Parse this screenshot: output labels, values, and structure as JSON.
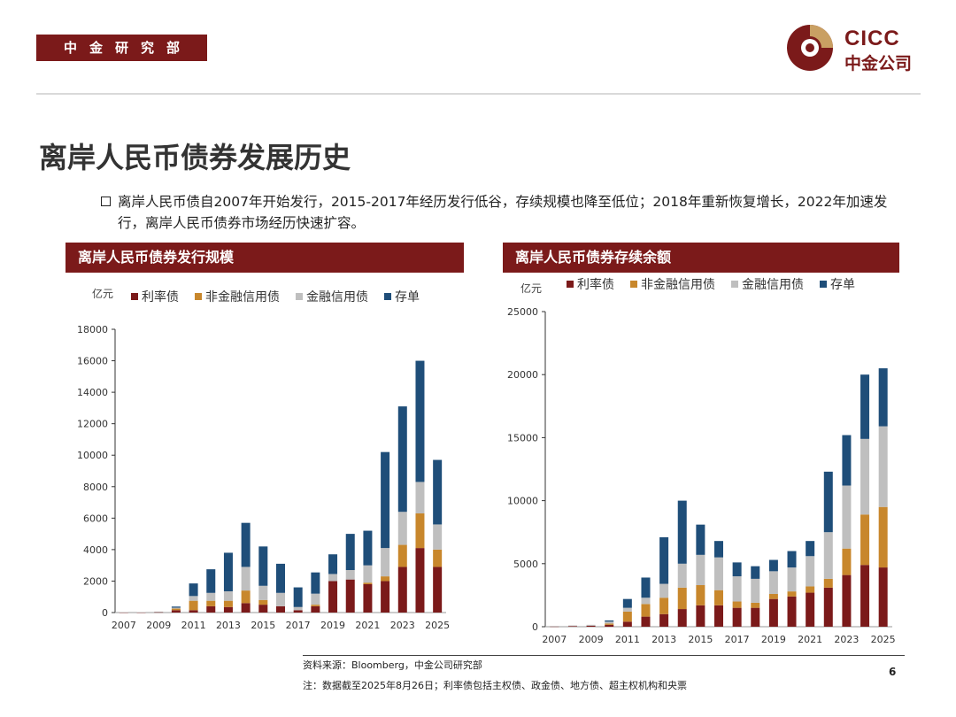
{
  "header": {
    "department": "中金研究部",
    "logo_en": "CICC",
    "logo_cn": "中金公司"
  },
  "title": "离岸人民币债券发展历史",
  "bullet": "离岸人民币债自2007年开始发行，2015-2017年经历发行低谷，存续规模也降至低位；2018年重新恢复增长，2022年加速发行，离岸人民币债券市场经历快速扩容。",
  "colors": {
    "brand": "#7b1a1a",
    "rate_bond": "#7b1a1a",
    "non_fin_credit": "#c8872c",
    "fin_credit": "#bfbfbf",
    "cd": "#1f4e79"
  },
  "chart_data": [
    {
      "type": "bar",
      "stacked": true,
      "title": "离岸人民币债券发行规模",
      "ylabel": "亿元",
      "ylim": [
        0,
        18000
      ],
      "yticks": [
        0,
        2000,
        4000,
        6000,
        8000,
        10000,
        12000,
        14000,
        16000,
        18000
      ],
      "categories": [
        "2007",
        "2008",
        "2009",
        "2010",
        "2011",
        "2012",
        "2013",
        "2014",
        "2015",
        "2016",
        "2017",
        "2018",
        "2019",
        "2020",
        "2021",
        "2022",
        "2023",
        "2024",
        "2025"
      ],
      "xtick_labels": [
        "2007",
        "2009",
        "2011",
        "2013",
        "2015",
        "2017",
        "2019",
        "2021",
        "2023",
        "2025"
      ],
      "series": [
        {
          "name": "利率债",
          "color": "#7b1a1a",
          "values": [
            10,
            10,
            20,
            150,
            150,
            400,
            350,
            600,
            500,
            400,
            150,
            400,
            2000,
            2100,
            1800,
            2000,
            2900,
            4100,
            2900
          ]
        },
        {
          "name": "非金融信用债",
          "color": "#c8872c",
          "values": [
            0,
            0,
            0,
            100,
            600,
            350,
            400,
            800,
            300,
            0,
            0,
            100,
            0,
            0,
            100,
            300,
            1400,
            2200,
            1100
          ]
        },
        {
          "name": "金融信用债",
          "color": "#bfbfbf",
          "values": [
            20,
            20,
            40,
            60,
            300,
            500,
            600,
            1500,
            900,
            850,
            200,
            700,
            450,
            600,
            1100,
            1800,
            2100,
            2000,
            1600
          ]
        },
        {
          "name": "存单",
          "color": "#1f4e79",
          "values": [
            0,
            0,
            0,
            70,
            800,
            1500,
            2450,
            2800,
            2500,
            1850,
            1250,
            1350,
            1250,
            2300,
            2200,
            6100,
            6700,
            7700,
            4100
          ]
        }
      ]
    },
    {
      "type": "bar",
      "stacked": true,
      "title": "离岸人民币债券存续余额",
      "ylabel": "亿元",
      "ylim": [
        0,
        25000
      ],
      "yticks": [
        0,
        5000,
        10000,
        15000,
        20000,
        25000
      ],
      "categories": [
        "2007",
        "2008",
        "2009",
        "2010",
        "2011",
        "2012",
        "2013",
        "2014",
        "2015",
        "2016",
        "2017",
        "2018",
        "2019",
        "2020",
        "2021",
        "2022",
        "2023",
        "2024",
        "2025"
      ],
      "xtick_labels": [
        "2007",
        "2009",
        "2011",
        "2013",
        "2015",
        "2017",
        "2019",
        "2021",
        "2023",
        "2025"
      ],
      "series": [
        {
          "name": "利率债",
          "color": "#7b1a1a",
          "values": [
            20,
            50,
            80,
            150,
            400,
            800,
            1000,
            1400,
            1700,
            1700,
            1500,
            1500,
            2200,
            2400,
            2700,
            3100,
            4100,
            4900,
            4700
          ]
        },
        {
          "name": "非金融信用债",
          "color": "#c8872c",
          "values": [
            0,
            0,
            0,
            100,
            800,
            1000,
            1300,
            1700,
            1600,
            1200,
            500,
            400,
            400,
            400,
            500,
            700,
            2100,
            4000,
            4800
          ]
        },
        {
          "name": "金融信用债",
          "color": "#bfbfbf",
          "values": [
            30,
            50,
            70,
            150,
            300,
            500,
            1100,
            1900,
            2400,
            2600,
            2000,
            1900,
            1800,
            1900,
            2400,
            3700,
            5000,
            6000,
            6400
          ]
        },
        {
          "name": "存单",
          "color": "#1f4e79",
          "values": [
            0,
            0,
            0,
            100,
            700,
            1600,
            3700,
            5000,
            2400,
            1300,
            1100,
            1000,
            900,
            1300,
            1200,
            4800,
            4000,
            5100,
            4600
          ]
        }
      ]
    }
  ],
  "footer": {
    "source": "资料来源：Bloomberg，中金公司研究部",
    "note": "注：数据截至2025年8月26日；利率债包括主权债、政金债、地方债、超主权机构和央票",
    "page": "6"
  }
}
